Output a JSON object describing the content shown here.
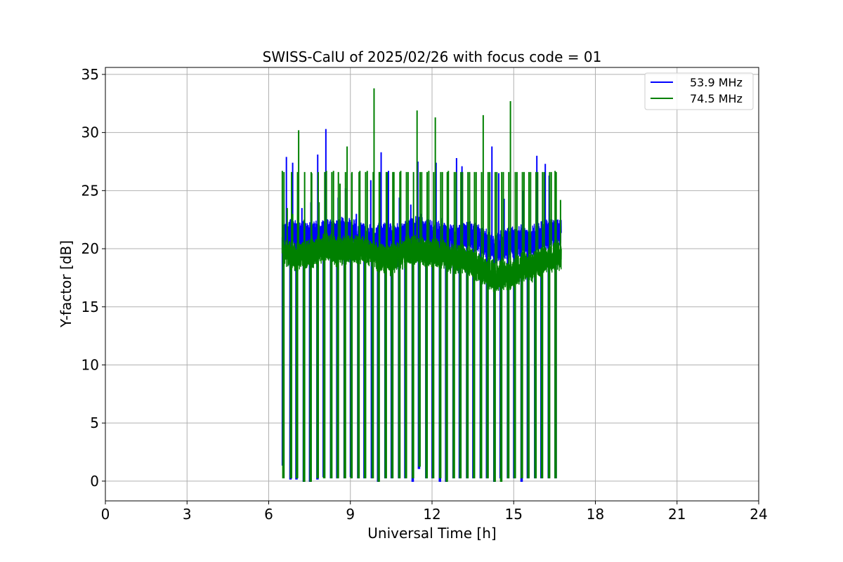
{
  "chart_data": {
    "type": "line",
    "title": "SWISS-CalU of 2025/02/26 with focus code = 01",
    "xlabel": "Universal Time [h]",
    "ylabel": "Y-factor [dB]",
    "xlim": [
      0,
      24
    ],
    "ylim": [
      -1.7,
      35.6
    ],
    "xticks": [
      0,
      3,
      6,
      9,
      12,
      15,
      18,
      21,
      24
    ],
    "yticks": [
      0,
      5,
      10,
      15,
      20,
      25,
      30,
      35
    ],
    "grid": true,
    "legend_position": "top-right",
    "series": [
      {
        "name": "53.9 MHz",
        "color": "#0000ff",
        "segment_start": [
          6.5,
          6.75,
          7.0,
          7.25,
          7.5,
          7.75,
          8.0,
          8.25,
          8.5,
          8.75,
          9.0,
          9.25,
          9.5,
          9.75,
          10.0,
          10.25,
          10.5,
          10.75,
          11.0,
          11.25,
          11.5,
          11.75,
          12.0,
          12.25,
          12.5,
          12.75,
          13.0,
          13.25,
          13.5,
          13.75,
          14.0,
          14.25,
          14.5,
          14.75,
          15.0,
          15.25,
          15.5,
          15.75,
          16.0,
          16.25,
          16.5
        ],
        "segment_level": [
          21.0,
          21.3,
          21.2,
          21.0,
          21.2,
          21.0,
          21.4,
          21.2,
          21.5,
          21.3,
          21.5,
          21.0,
          20.8,
          20.6,
          20.9,
          21.1,
          20.8,
          20.9,
          21.2,
          21.4,
          21.5,
          21.4,
          21.0,
          21.3,
          21.1,
          20.7,
          21.0,
          21.2,
          21.1,
          20.6,
          20.3,
          19.9,
          20.2,
          20.6,
          20.5,
          20.8,
          20.5,
          20.9,
          21.1,
          21.3,
          21.5
        ],
        "peaks": [
          [
            6.56,
            22.1
          ],
          [
            6.65,
            27.9
          ],
          [
            6.88,
            27.4
          ],
          [
            7.22,
            23.5
          ],
          [
            7.55,
            24.0
          ],
          [
            7.8,
            28.1
          ],
          [
            8.1,
            30.3
          ],
          [
            8.3,
            22.0
          ],
          [
            8.55,
            24.4
          ],
          [
            8.82,
            25.2
          ],
          [
            9.22,
            23.0
          ],
          [
            9.75,
            25.9
          ],
          [
            10.13,
            28.3
          ],
          [
            10.4,
            26.7
          ],
          [
            10.8,
            24.4
          ],
          [
            11.22,
            23.8
          ],
          [
            11.48,
            27.5
          ],
          [
            11.6,
            23.0
          ],
          [
            12.15,
            27.4
          ],
          [
            12.9,
            27.8
          ],
          [
            13.1,
            27.1
          ],
          [
            13.82,
            26.0
          ],
          [
            14.2,
            28.8
          ],
          [
            14.45,
            26.5
          ],
          [
            14.65,
            24.3
          ],
          [
            15.04,
            21.7
          ],
          [
            15.36,
            25.0
          ],
          [
            15.85,
            28.0
          ],
          [
            16.16,
            27.3
          ],
          [
            16.3,
            26.3
          ]
        ],
        "dropouts": [
          [
            6.5,
            1.4
          ],
          [
            6.78,
            0.2
          ],
          [
            7.0,
            0.2
          ],
          [
            7.27,
            0.0
          ],
          [
            7.5,
            0.0
          ],
          [
            7.77,
            0.2
          ],
          [
            8.0,
            0.4
          ],
          [
            8.27,
            0.3
          ],
          [
            8.5,
            0.3
          ],
          [
            8.77,
            0.3
          ],
          [
            9.0,
            0.4
          ],
          [
            9.27,
            0.3
          ],
          [
            9.5,
            0.3
          ],
          [
            9.77,
            0.3
          ],
          [
            10.0,
            0.0
          ],
          [
            10.27,
            0.3
          ],
          [
            10.5,
            0.3
          ],
          [
            10.77,
            0.3
          ],
          [
            11.0,
            0.3
          ],
          [
            11.27,
            0.0
          ],
          [
            11.5,
            1.1
          ],
          [
            11.77,
            0.3
          ],
          [
            12.0,
            0.3
          ],
          [
            12.27,
            0.0
          ],
          [
            12.5,
            0.0
          ],
          [
            12.77,
            0.3
          ],
          [
            13.0,
            0.3
          ],
          [
            13.27,
            0.3
          ],
          [
            13.5,
            0.3
          ],
          [
            13.77,
            0.3
          ],
          [
            14.0,
            0.3
          ],
          [
            14.27,
            0.0
          ],
          [
            14.5,
            0.3
          ],
          [
            14.77,
            0.3
          ],
          [
            15.0,
            0.3
          ],
          [
            15.27,
            0.0
          ],
          [
            15.5,
            0.3
          ],
          [
            15.77,
            0.3
          ],
          [
            16.0,
            0.3
          ],
          [
            16.27,
            0.3
          ],
          [
            16.52,
            0.3
          ]
        ]
      },
      {
        "name": "74.5 MHz",
        "color": "#008000",
        "segment_start": [
          6.5,
          6.75,
          7.0,
          7.25,
          7.5,
          7.75,
          8.0,
          8.25,
          8.5,
          8.75,
          9.0,
          9.25,
          9.5,
          9.75,
          10.0,
          10.25,
          10.5,
          10.75,
          11.0,
          11.25,
          11.5,
          11.75,
          12.0,
          12.25,
          12.5,
          12.75,
          13.0,
          13.25,
          13.5,
          13.75,
          14.0,
          14.25,
          14.5,
          14.75,
          15.0,
          15.25,
          15.5,
          15.75,
          16.0,
          16.25,
          16.5
        ],
        "segment_level": [
          19.6,
          19.4,
          19.3,
          19.4,
          19.6,
          19.9,
          20.2,
          19.9,
          19.7,
          20.0,
          19.9,
          20.1,
          19.8,
          19.5,
          19.3,
          19.0,
          19.1,
          19.5,
          19.8,
          20.0,
          19.8,
          19.6,
          19.8,
          19.5,
          19.3,
          19.0,
          19.2,
          18.8,
          18.6,
          18.2,
          17.9,
          17.6,
          17.8,
          17.5,
          18.0,
          18.4,
          18.2,
          18.7,
          19.0,
          19.2,
          19.4
        ],
        "peaks": [
          [
            6.5,
            26.7
          ],
          [
            6.68,
            23.5
          ],
          [
            6.88,
            23.0
          ],
          [
            7.1,
            30.2
          ],
          [
            7.3,
            22.5
          ],
          [
            7.58,
            26.5
          ],
          [
            7.85,
            24.0
          ],
          [
            8.12,
            26.7
          ],
          [
            8.38,
            26.7
          ],
          [
            8.62,
            25.6
          ],
          [
            8.88,
            28.8
          ],
          [
            9.05,
            26.5
          ],
          [
            9.35,
            26.7
          ],
          [
            9.62,
            26.7
          ],
          [
            9.87,
            33.8
          ],
          [
            10.08,
            26.6
          ],
          [
            10.35,
            26.6
          ],
          [
            10.6,
            26.6
          ],
          [
            10.85,
            26.7
          ],
          [
            11.12,
            26.6
          ],
          [
            11.45,
            31.9
          ],
          [
            11.62,
            26.6
          ],
          [
            11.88,
            26.7
          ],
          [
            12.12,
            31.3
          ],
          [
            12.38,
            26.6
          ],
          [
            12.6,
            26.7
          ],
          [
            12.88,
            26.6
          ],
          [
            13.12,
            26.6
          ],
          [
            13.38,
            26.6
          ],
          [
            13.62,
            26.6
          ],
          [
            13.88,
            31.5
          ],
          [
            14.12,
            26.6
          ],
          [
            14.38,
            26.6
          ],
          [
            14.62,
            26.6
          ],
          [
            14.88,
            32.7
          ],
          [
            15.12,
            26.6
          ],
          [
            15.38,
            26.6
          ],
          [
            15.62,
            26.6
          ],
          [
            15.88,
            26.6
          ],
          [
            16.12,
            26.6
          ],
          [
            16.38,
            26.6
          ],
          [
            16.52,
            26.7
          ],
          [
            16.72,
            24.2
          ]
        ],
        "dropouts": [
          [
            6.52,
            0.3
          ],
          [
            6.8,
            0.3
          ],
          [
            7.02,
            0.3
          ],
          [
            7.28,
            0.0
          ],
          [
            7.52,
            0.0
          ],
          [
            7.78,
            0.3
          ],
          [
            8.02,
            0.3
          ],
          [
            8.28,
            0.3
          ],
          [
            8.52,
            0.3
          ],
          [
            8.78,
            0.3
          ],
          [
            9.02,
            0.3
          ],
          [
            9.28,
            0.3
          ],
          [
            9.52,
            0.3
          ],
          [
            9.8,
            0.3
          ],
          [
            10.02,
            0.0
          ],
          [
            10.28,
            0.3
          ],
          [
            10.52,
            0.3
          ],
          [
            10.78,
            0.3
          ],
          [
            11.02,
            0.3
          ],
          [
            11.28,
            0.3
          ],
          [
            11.52,
            1.3
          ],
          [
            11.78,
            0.3
          ],
          [
            12.02,
            0.3
          ],
          [
            12.28,
            0.3
          ],
          [
            12.52,
            0.0
          ],
          [
            12.78,
            0.3
          ],
          [
            13.02,
            0.3
          ],
          [
            13.28,
            0.3
          ],
          [
            13.52,
            0.3
          ],
          [
            13.78,
            0.3
          ],
          [
            14.02,
            0.3
          ],
          [
            14.28,
            0.0
          ],
          [
            14.52,
            0.0
          ],
          [
            14.78,
            0.3
          ],
          [
            15.02,
            0.3
          ],
          [
            15.28,
            0.3
          ],
          [
            15.52,
            0.3
          ],
          [
            15.78,
            0.3
          ],
          [
            16.02,
            0.3
          ],
          [
            16.28,
            0.3
          ],
          [
            16.52,
            0.3
          ]
        ]
      }
    ]
  }
}
